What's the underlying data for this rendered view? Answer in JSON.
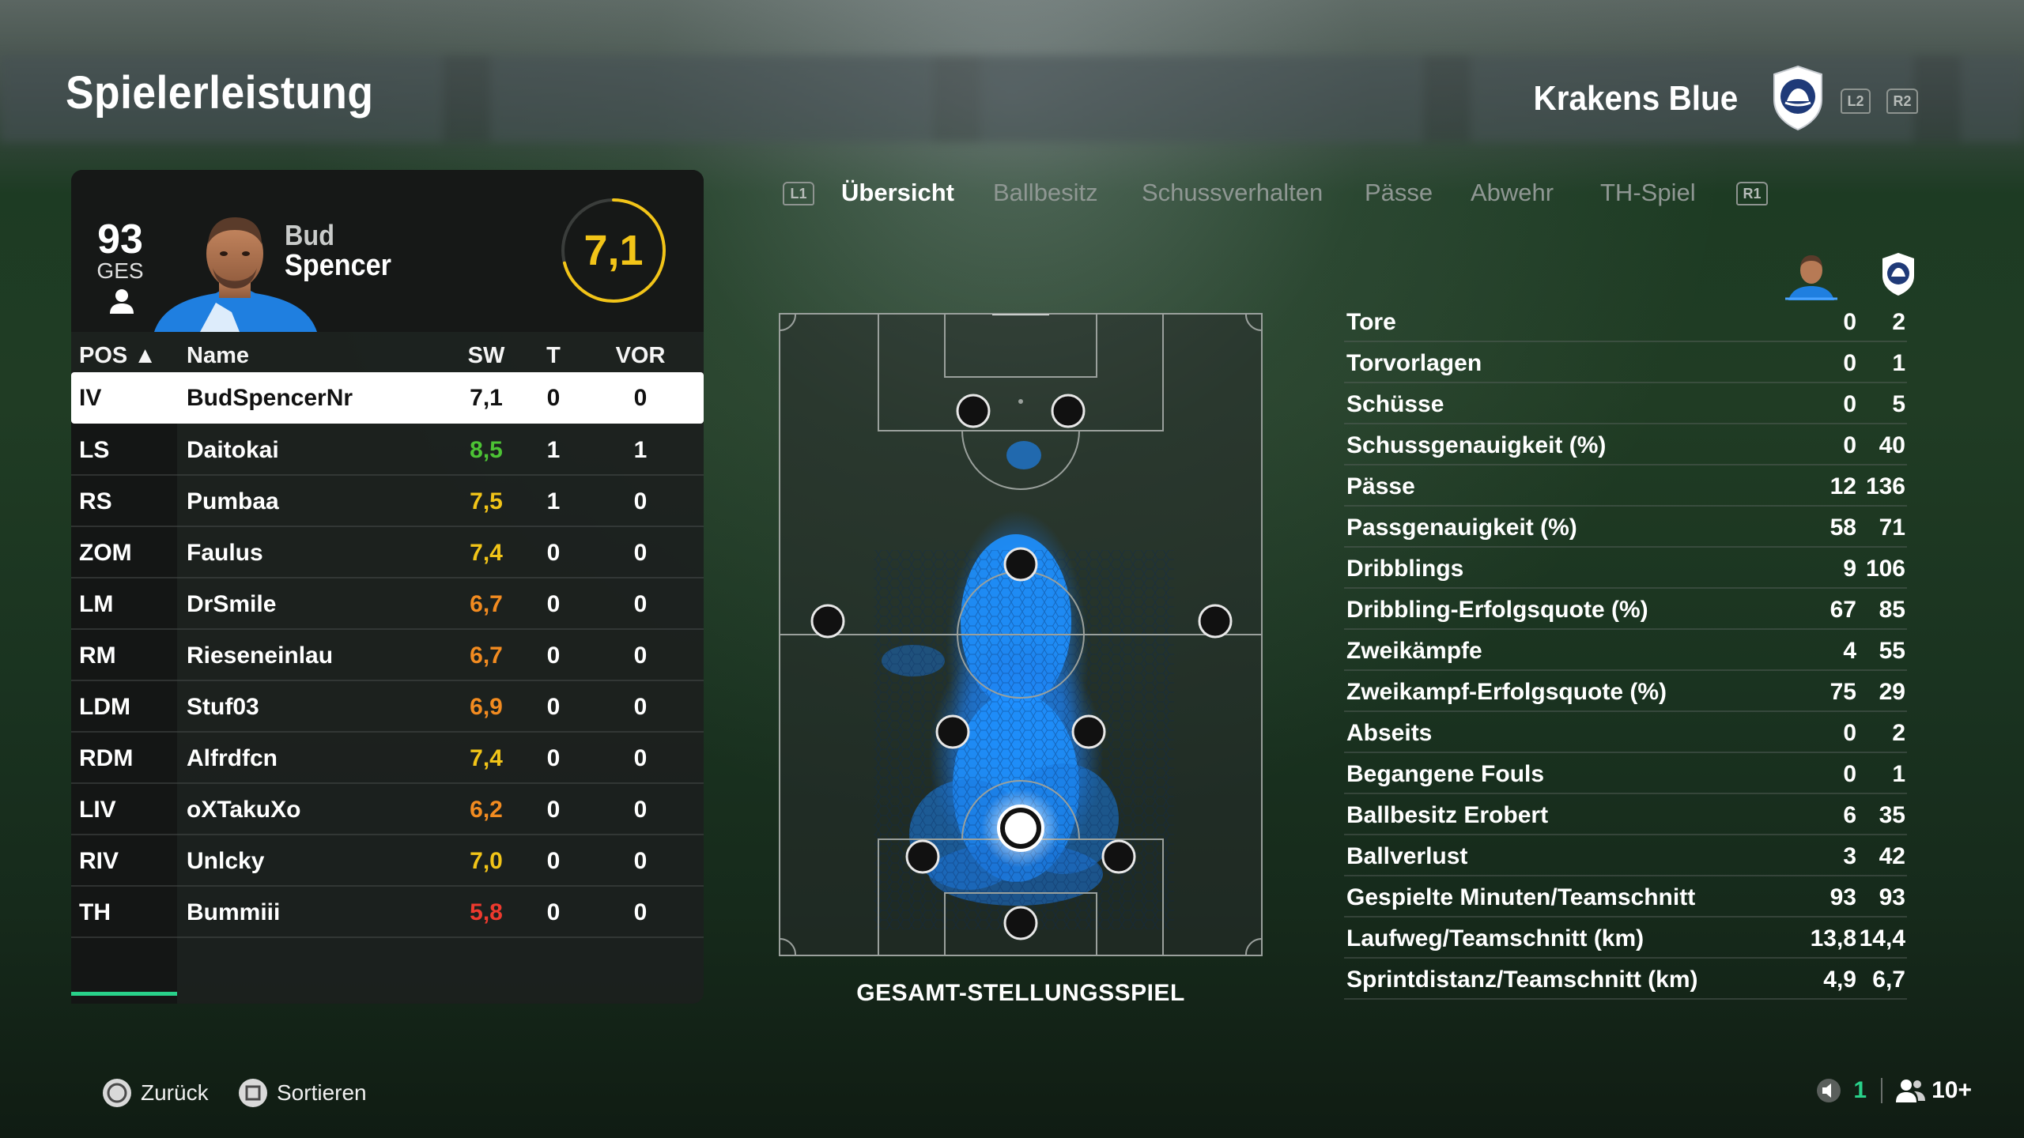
{
  "header": {
    "title": "Spielerleistung",
    "team_name": "Krakens Blue",
    "l2_label": "L2",
    "r2_label": "R2"
  },
  "player": {
    "overall": "93",
    "overall_label": "GES",
    "first_name": "Bud",
    "last_name": "Spencer",
    "rating": "7,1",
    "rating_fraction": 0.71
  },
  "table": {
    "headers": {
      "pos": "POS ▲",
      "name": "Name",
      "sw": "SW",
      "t": "T",
      "vor": "VOR"
    },
    "rows": [
      {
        "pos": "IV",
        "name": "BudSpencerNr",
        "sw": "7,1",
        "t": "0",
        "vor": "0",
        "sw_color": "#111111"
      },
      {
        "pos": "LS",
        "name": "Daitokai",
        "sw": "8,5",
        "t": "1",
        "vor": "1",
        "sw_color": "#4cc334"
      },
      {
        "pos": "RS",
        "name": "Pumbaa",
        "sw": "7,5",
        "t": "1",
        "vor": "0",
        "sw_color": "#f2c418"
      },
      {
        "pos": "ZOM",
        "name": "Faulus",
        "sw": "7,4",
        "t": "0",
        "vor": "0",
        "sw_color": "#f2c418"
      },
      {
        "pos": "LM",
        "name": "DrSmile",
        "sw": "6,7",
        "t": "0",
        "vor": "0",
        "sw_color": "#f28b20"
      },
      {
        "pos": "RM",
        "name": "Rieseneinlau",
        "sw": "6,7",
        "t": "0",
        "vor": "0",
        "sw_color": "#f28b20"
      },
      {
        "pos": "LDM",
        "name": "Stuf03",
        "sw": "6,9",
        "t": "0",
        "vor": "0",
        "sw_color": "#f28b20"
      },
      {
        "pos": "RDM",
        "name": "Alfrdfcn",
        "sw": "7,4",
        "t": "0",
        "vor": "0",
        "sw_color": "#f2c418"
      },
      {
        "pos": "LIV",
        "name": "oXTakuXo",
        "sw": "6,2",
        "t": "0",
        "vor": "0",
        "sw_color": "#f28b20"
      },
      {
        "pos": "RIV",
        "name": "Unlcky",
        "sw": "7,0",
        "t": "0",
        "vor": "0",
        "sw_color": "#f2c418"
      },
      {
        "pos": "TH",
        "name": "Bummiii",
        "sw": "5,8",
        "t": "0",
        "vor": "0",
        "sw_color": "#ee3a2e"
      }
    ]
  },
  "tabs": {
    "left_shoulder": "L1",
    "right_shoulder": "R1",
    "items": [
      "Übersicht",
      "Ballbesitz",
      "Schussverhalten",
      "Pässe",
      "Abwehr",
      "TH-Spiel"
    ],
    "active": 0
  },
  "pitch": {
    "caption": "GESAMT-STELLUNGSSPIEL"
  },
  "stats": [
    {
      "label": "Tore",
      "player": "0",
      "team": "2"
    },
    {
      "label": "Torvorlagen",
      "player": "0",
      "team": "1"
    },
    {
      "label": "Schüsse",
      "player": "0",
      "team": "5"
    },
    {
      "label": "Schussgenauigkeit (%)",
      "player": "0",
      "team": "40"
    },
    {
      "label": "Pässe",
      "player": "12",
      "team": "136"
    },
    {
      "label": "Passgenauigkeit (%)",
      "player": "58",
      "team": "71"
    },
    {
      "label": "Dribblings",
      "player": "9",
      "team": "106"
    },
    {
      "label": "Dribbling-Erfolgsquote (%)",
      "player": "67",
      "team": "85"
    },
    {
      "label": "Zweikämpfe",
      "player": "4",
      "team": "55"
    },
    {
      "label": "Zweikampf-Erfolgsquote (%)",
      "player": "75",
      "team": "29"
    },
    {
      "label": "Abseits",
      "player": "0",
      "team": "2"
    },
    {
      "label": "Begangene Fouls",
      "player": "0",
      "team": "1"
    },
    {
      "label": "Ballbesitz Erobert",
      "player": "6",
      "team": "35"
    },
    {
      "label": "Ballverlust",
      "player": "3",
      "team": "42"
    },
    {
      "label": "Gespielte Minuten/Teamschnitt",
      "player": "93",
      "team": "93"
    },
    {
      "label": "Laufweg/Teamschnitt (km)",
      "player": "13,8",
      "team": "14,4"
    },
    {
      "label": "Sprintdistanz/Teamschnitt (km)",
      "player": "4,9",
      "team": "6,7"
    }
  ],
  "footer": {
    "back_label": "Zurück",
    "sort_label": "Sortieren",
    "mic_count": "1",
    "party_count": "10+"
  },
  "colors": {
    "accent_green": "#29d18a",
    "rating_yellow": "#f2c418",
    "heatmap_blue": "#1e90ff"
  }
}
